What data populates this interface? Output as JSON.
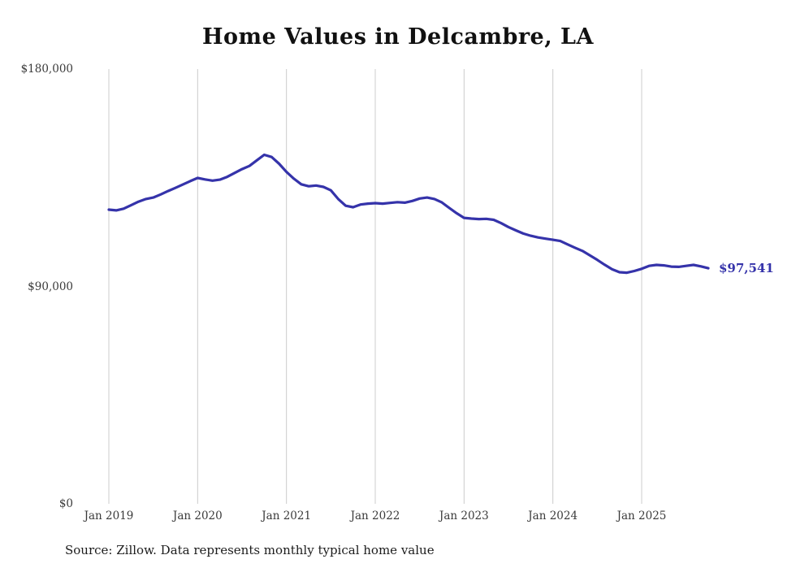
{
  "chart_data": {
    "type": "line",
    "title": "Home Values in Delcambre, LA",
    "xlabel": "",
    "ylabel": "",
    "ylim": [
      0,
      180000
    ],
    "grid": "vertical",
    "grid_color": "#cccccc",
    "line_color": "#3533aa",
    "end_label": "$97,541",
    "source_note": "Source: Zillow. Data represents monthly typical home value",
    "x_start": "Jan 2019",
    "x_end": "Oct 2025",
    "frequency": "monthly",
    "x_tick_labels": [
      "Jan 2019",
      "Jan 2020",
      "Jan 2021",
      "Jan 2022",
      "Jan 2023",
      "Jan 2024",
      "Jan 2025"
    ],
    "y_ticks": [
      {
        "value": 0,
        "label": "$0"
      },
      {
        "value": 90000,
        "label": "$90,000"
      },
      {
        "value": 180000,
        "label": "$180,000"
      }
    ],
    "series": [
      {
        "name": "Typical home value",
        "values": [
          121800,
          121500,
          122200,
          123600,
          125100,
          126200,
          126800,
          128100,
          129500,
          130800,
          132200,
          133600,
          134900,
          134300,
          133800,
          134200,
          135400,
          137000,
          138600,
          139900,
          142200,
          144500,
          143600,
          140800,
          137400,
          134600,
          132300,
          131500,
          131800,
          131200,
          129800,
          126200,
          123400,
          122800,
          123900,
          124300,
          124500,
          124300,
          124600,
          124900,
          124700,
          125400,
          126400,
          126800,
          126200,
          124800,
          122500,
          120300,
          118400,
          118100,
          117900,
          118000,
          117600,
          116200,
          114600,
          113200,
          111900,
          111000,
          110300,
          109800,
          109300,
          108800,
          107400,
          106000,
          104700,
          102900,
          101000,
          99000,
          97100,
          95900,
          95700,
          96400,
          97300,
          98500,
          98900,
          98700,
          98200,
          98100,
          98500,
          98900,
          98300,
          97541
        ]
      }
    ]
  }
}
